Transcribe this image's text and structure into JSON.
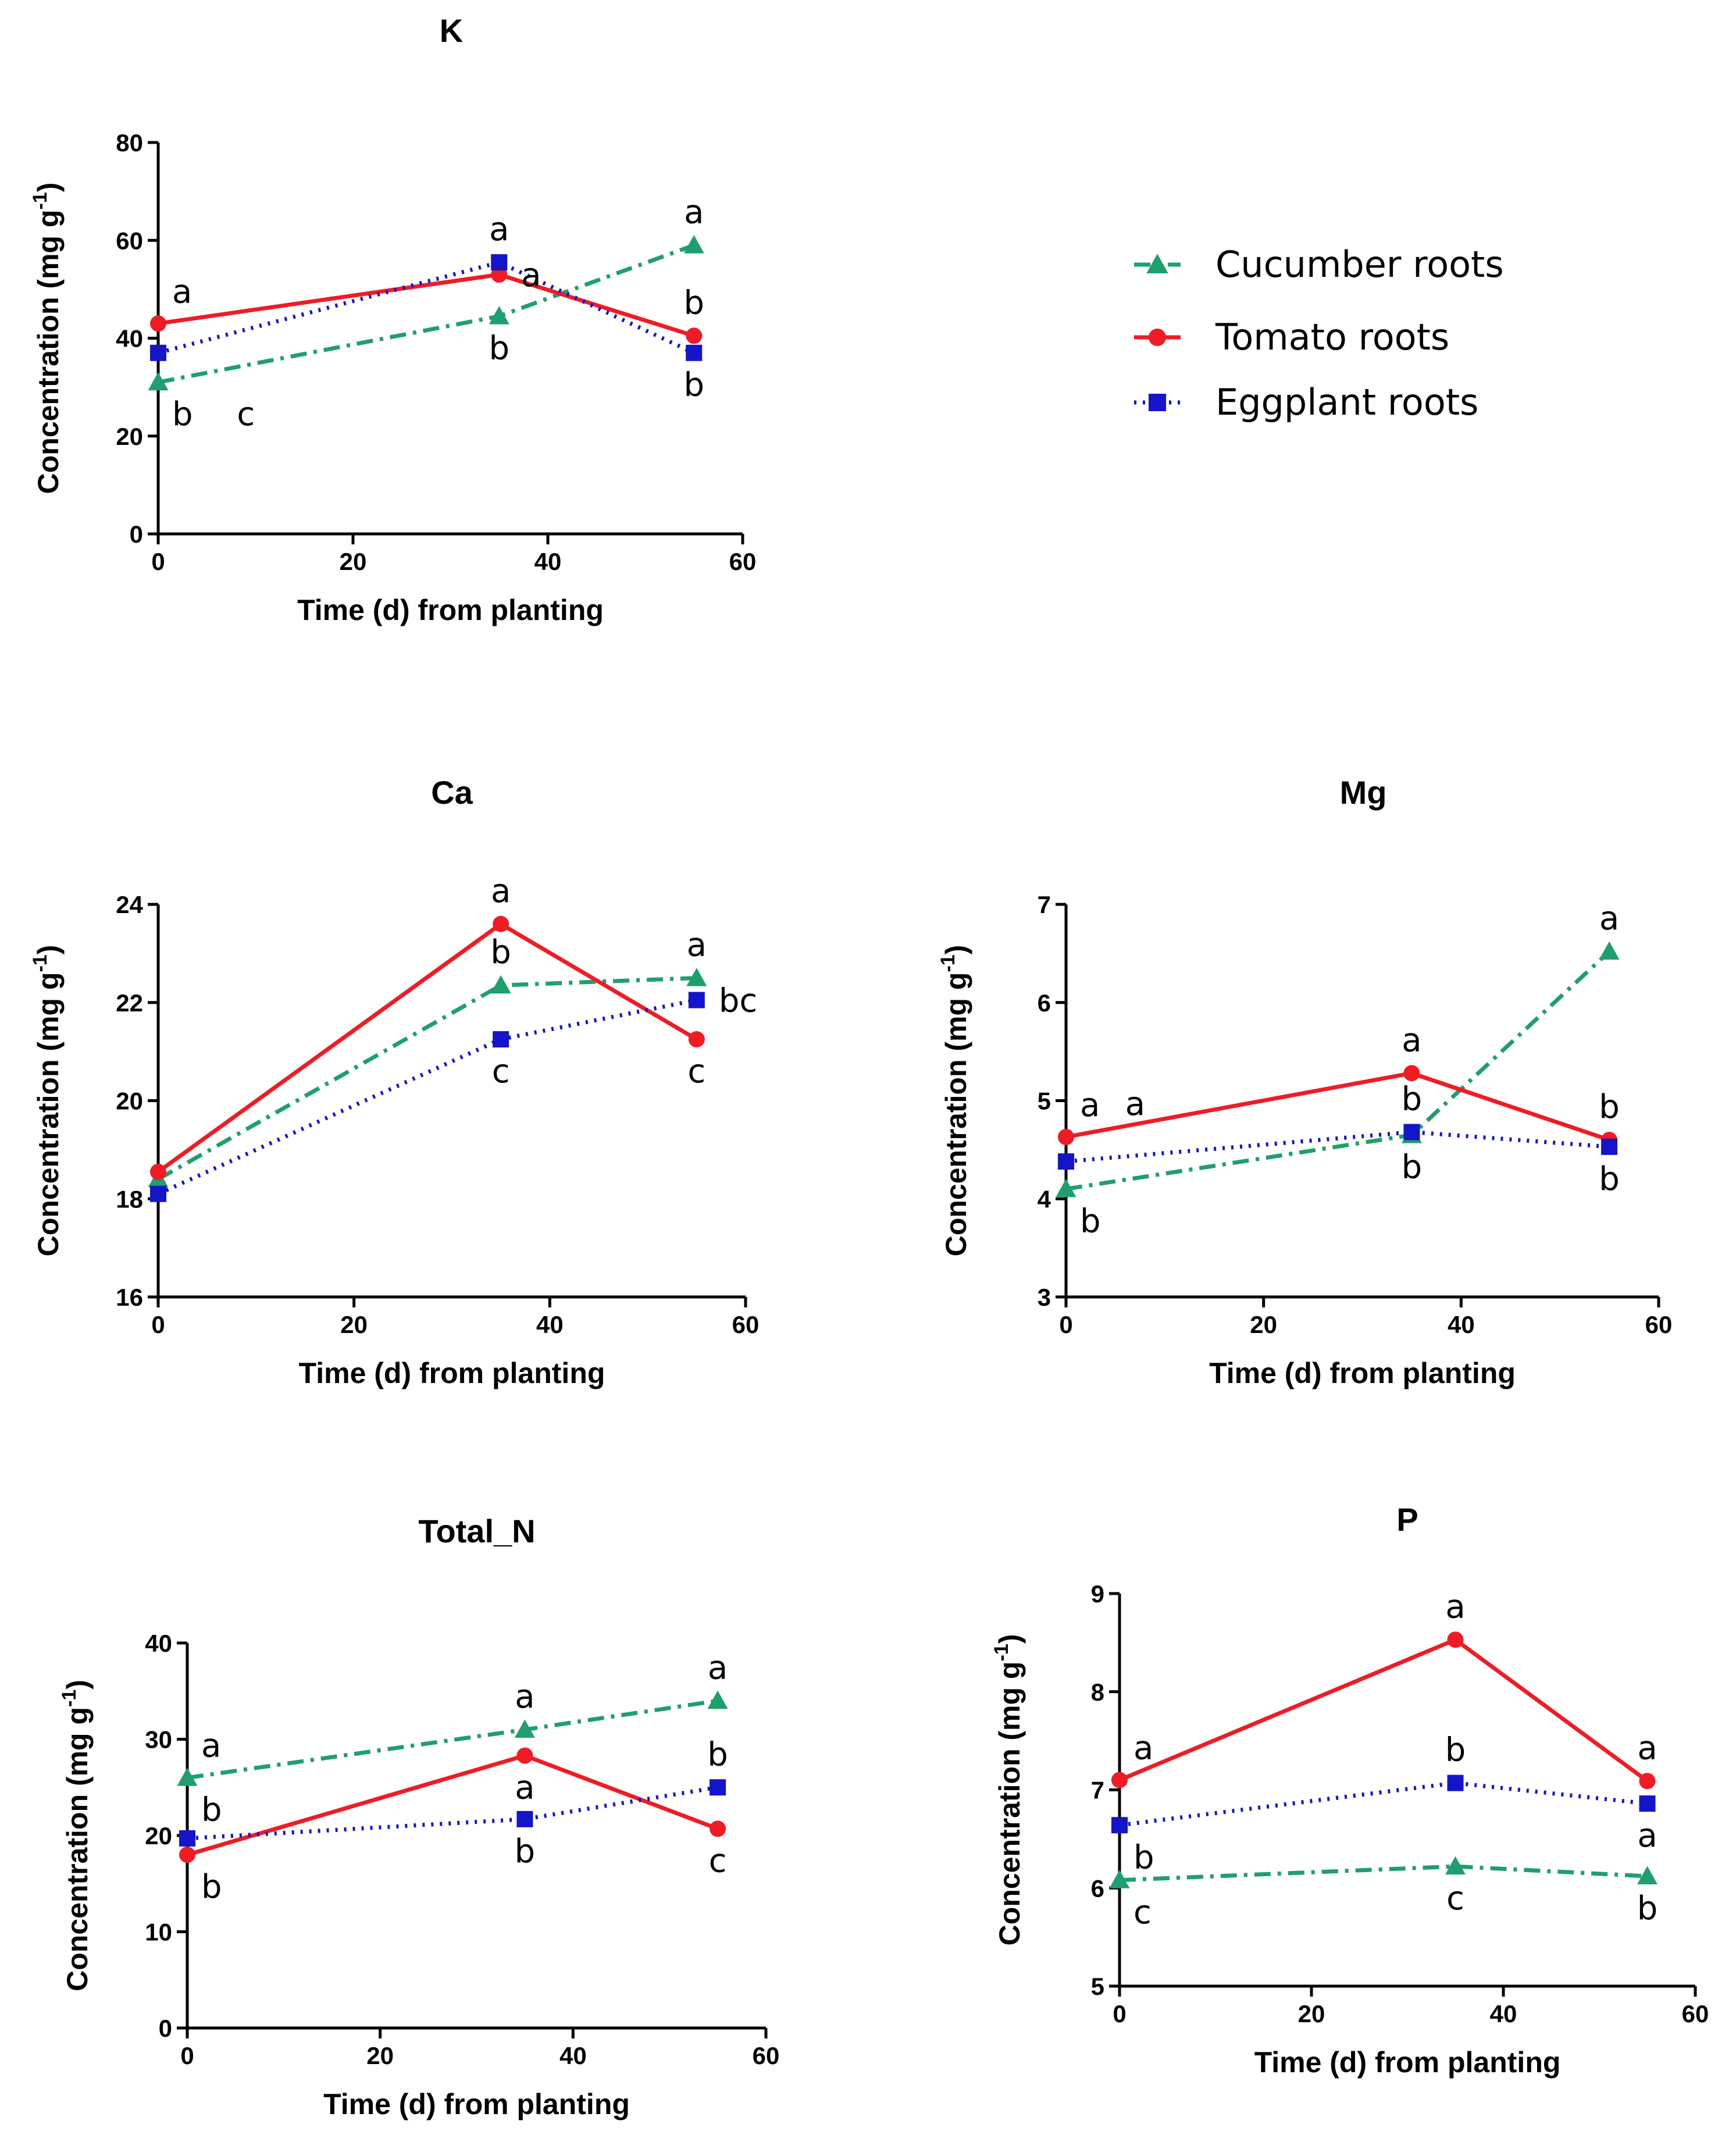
{
  "legend": [
    {
      "key": "cucumber",
      "name": "Cucumber roots",
      "color": "#1f9e6e",
      "marker": "triangle",
      "dash": "28 12 6 12"
    },
    {
      "key": "tomato",
      "name": "Tomato roots",
      "color": "#ef1c25",
      "marker": "circle",
      "dash": ""
    },
    {
      "key": "eggplant",
      "name": "Eggplant roots",
      "color": "#1414c8",
      "marker": "square",
      "dash": "4 11"
    }
  ],
  "chart_data": [
    {
      "type": "line",
      "title": "K",
      "xlabel": "Time (d) from planting",
      "ylabel": "Concentration (mg g-1)",
      "xlim": [
        0,
        60
      ],
      "ylim": [
        0,
        80
      ],
      "xticks": [
        0,
        20,
        40,
        60
      ],
      "yticks": [
        0,
        20,
        40,
        60,
        80
      ],
      "x": [
        0,
        35,
        55
      ],
      "series": [
        {
          "key": "cucumber",
          "name": "Cucumber roots",
          "values": [
            31,
            44.5,
            59
          ]
        },
        {
          "key": "tomato",
          "name": "Tomato roots",
          "values": [
            43,
            53,
            40.5
          ]
        },
        {
          "key": "eggplant",
          "name": "Eggplant roots",
          "values": [
            37,
            55.5,
            37
          ]
        }
      ],
      "letters": [
        {
          "text": "a",
          "x": 0,
          "y": 43,
          "pos": "above-right"
        },
        {
          "text": "b",
          "x": 0,
          "y": 31,
          "pos": "below-right"
        },
        {
          "text": "c",
          "x": 9,
          "y": 31,
          "pos": "below"
        },
        {
          "text": "a",
          "x": 35,
          "y": 55.5,
          "pos": "above"
        },
        {
          "text": "a",
          "x": 35,
          "y": 53,
          "pos": "right"
        },
        {
          "text": "b",
          "x": 35,
          "y": 44.5,
          "pos": "below"
        },
        {
          "text": "a",
          "x": 55,
          "y": 59,
          "pos": "above"
        },
        {
          "text": "b",
          "x": 55,
          "y": 40.5,
          "pos": "above"
        },
        {
          "text": "b",
          "x": 55,
          "y": 37,
          "pos": "below"
        }
      ]
    },
    {
      "type": "line",
      "title": "Ca",
      "xlabel": "Time (d) from planting",
      "ylabel": "Concentration (mg g-1)",
      "xlim": [
        0,
        60
      ],
      "ylim": [
        16,
        24
      ],
      "xticks": [
        0,
        20,
        40,
        60
      ],
      "yticks": [
        16,
        18,
        20,
        22,
        24
      ],
      "x": [
        0,
        35,
        55
      ],
      "series": [
        {
          "key": "cucumber",
          "name": "Cucumber roots",
          "values": [
            18.4,
            22.35,
            22.5
          ]
        },
        {
          "key": "tomato",
          "name": "Tomato roots",
          "values": [
            18.55,
            23.6,
            21.25
          ]
        },
        {
          "key": "eggplant",
          "name": "Eggplant roots",
          "values": [
            18.1,
            21.25,
            22.05
          ]
        }
      ],
      "letters": [
        {
          "text": "a",
          "x": 35,
          "y": 23.6,
          "pos": "above"
        },
        {
          "text": "b",
          "x": 35,
          "y": 22.35,
          "pos": "above"
        },
        {
          "text": "c",
          "x": 35,
          "y": 21.25,
          "pos": "below"
        },
        {
          "text": "a",
          "x": 55,
          "y": 22.5,
          "pos": "above"
        },
        {
          "text": "bc",
          "x": 55,
          "y": 22.05,
          "pos": "right"
        },
        {
          "text": "c",
          "x": 55,
          "y": 21.25,
          "pos": "below"
        }
      ]
    },
    {
      "type": "line",
      "title": "Mg",
      "xlabel": "Time (d) from planting",
      "ylabel": "Concentration (mg g-1)",
      "xlim": [
        0,
        60
      ],
      "ylim": [
        3,
        7
      ],
      "xticks": [
        0,
        20,
        40,
        60
      ],
      "yticks": [
        3,
        4,
        5,
        6,
        7
      ],
      "x": [
        0,
        35,
        55
      ],
      "series": [
        {
          "key": "cucumber",
          "name": "Cucumber roots",
          "values": [
            4.1,
            4.65,
            6.52
          ]
        },
        {
          "key": "tomato",
          "name": "Tomato roots",
          "values": [
            4.63,
            5.28,
            4.6
          ]
        },
        {
          "key": "eggplant",
          "name": "Eggplant roots",
          "values": [
            4.38,
            4.68,
            4.53
          ]
        }
      ],
      "letters": [
        {
          "text": "a",
          "x": 0,
          "y": 4.63,
          "pos": "above-right"
        },
        {
          "text": "a",
          "x": 7,
          "y": 4.63,
          "pos": "above"
        },
        {
          "text": "b",
          "x": 0,
          "y": 4.1,
          "pos": "below-right"
        },
        {
          "text": "a",
          "x": 35,
          "y": 5.28,
          "pos": "above"
        },
        {
          "text": "b",
          "x": 35,
          "y": 4.68,
          "pos": "above"
        },
        {
          "text": "b",
          "x": 35,
          "y": 4.65,
          "pos": "below"
        },
        {
          "text": "a",
          "x": 55,
          "y": 6.52,
          "pos": "above"
        },
        {
          "text": "b",
          "x": 55,
          "y": 4.6,
          "pos": "above"
        },
        {
          "text": "b",
          "x": 55,
          "y": 4.53,
          "pos": "below"
        }
      ]
    },
    {
      "type": "line",
      "title": "Total_N",
      "xlabel": "Time (d) from planting",
      "ylabel": "Concentration (mg g-1)",
      "xlim": [
        0,
        60
      ],
      "ylim": [
        0,
        40
      ],
      "xticks": [
        0,
        20,
        40,
        60
      ],
      "yticks": [
        0,
        10,
        20,
        30,
        40
      ],
      "x": [
        0,
        35,
        55
      ],
      "series": [
        {
          "key": "cucumber",
          "name": "Cucumber roots",
          "values": [
            26,
            31,
            34
          ]
        },
        {
          "key": "tomato",
          "name": "Tomato roots",
          "values": [
            18,
            28.3,
            20.7
          ]
        },
        {
          "key": "eggplant",
          "name": "Eggplant roots",
          "values": [
            19.7,
            21.7,
            25
          ]
        }
      ],
      "letters": [
        {
          "text": "a",
          "x": 0,
          "y": 26,
          "pos": "above-right"
        },
        {
          "text": "b",
          "x": 0,
          "y": 26,
          "pos": "below-right"
        },
        {
          "text": "b",
          "x": 0,
          "y": 18,
          "pos": "below-right"
        },
        {
          "text": "a",
          "x": 35,
          "y": 31,
          "pos": "above"
        },
        {
          "text": "a",
          "x": 35,
          "y": 28.3,
          "pos": "below"
        },
        {
          "text": "b",
          "x": 35,
          "y": 21.7,
          "pos": "below"
        },
        {
          "text": "a",
          "x": 55,
          "y": 34,
          "pos": "above"
        },
        {
          "text": "b",
          "x": 55,
          "y": 25,
          "pos": "above"
        },
        {
          "text": "c",
          "x": 55,
          "y": 20.7,
          "pos": "below"
        }
      ]
    },
    {
      "type": "line",
      "title": "P",
      "xlabel": "Time (d) from planting",
      "ylabel": "Concentration (mg g-1)",
      "xlim": [
        0,
        60
      ],
      "ylim": [
        5,
        9
      ],
      "xticks": [
        0,
        20,
        40,
        60
      ],
      "yticks": [
        5,
        6,
        7,
        8,
        9
      ],
      "x": [
        0,
        35,
        55
      ],
      "series": [
        {
          "key": "cucumber",
          "name": "Cucumber roots",
          "values": [
            6.08,
            6.22,
            6.12
          ]
        },
        {
          "key": "tomato",
          "name": "Tomato roots",
          "values": [
            7.1,
            8.53,
            7.09
          ]
        },
        {
          "key": "eggplant",
          "name": "Eggplant roots",
          "values": [
            6.64,
            7.07,
            6.86
          ]
        }
      ],
      "letters": [
        {
          "text": "a",
          "x": 0,
          "y": 7.1,
          "pos": "above-right"
        },
        {
          "text": "b",
          "x": 0,
          "y": 6.64,
          "pos": "below-right"
        },
        {
          "text": "c",
          "x": 0,
          "y": 6.08,
          "pos": "below-right"
        },
        {
          "text": "a",
          "x": 35,
          "y": 8.53,
          "pos": "above"
        },
        {
          "text": "b",
          "x": 35,
          "y": 7.07,
          "pos": "above"
        },
        {
          "text": "c",
          "x": 35,
          "y": 6.22,
          "pos": "below"
        },
        {
          "text": "a",
          "x": 55,
          "y": 7.09,
          "pos": "above"
        },
        {
          "text": "a",
          "x": 55,
          "y": 6.86,
          "pos": "below"
        },
        {
          "text": "b",
          "x": 55,
          "y": 6.12,
          "pos": "below"
        }
      ]
    }
  ]
}
